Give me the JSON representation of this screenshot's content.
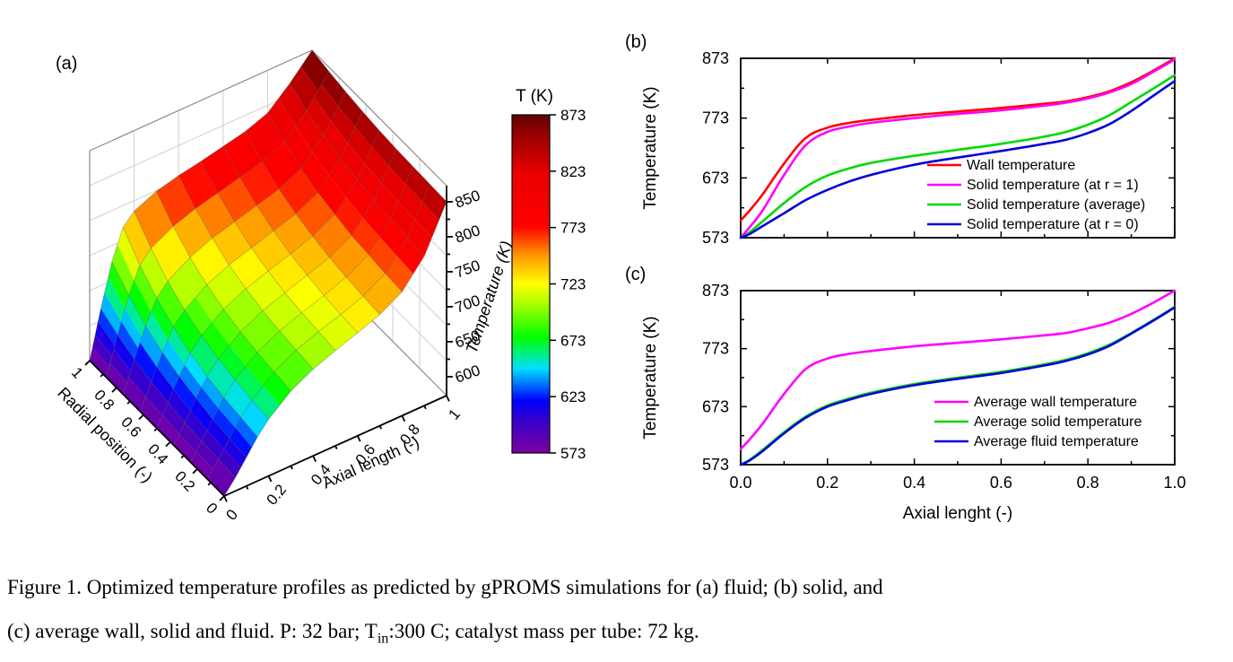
{
  "caption": {
    "line1": "Figure 1. Optimized temperature profiles as predicted by gPROMS simulations for (a) fluid; (b) solid, and",
    "line2_pre": "(c) average wall, solid and fluid. P: 32 bar; T",
    "line2_sub": "in",
    "line2_post": ":300 C; catalyst mass per tube: 72 kg."
  },
  "chart_data": [
    {
      "id": "a",
      "type": "surface",
      "panel_label": "(a)",
      "xlabel": "Axial length (-)",
      "ylabel": "Radial position (-)",
      "zlabel": "Temperature (K)",
      "x_ticks": [
        "0",
        "0.2",
        "0.4",
        "0.6",
        "0.8",
        "1"
      ],
      "y_ticks": [
        "0",
        "0.2",
        "0.4",
        "0.6",
        "0.8",
        "1"
      ],
      "z_ticks": [
        "600",
        "650",
        "700",
        "750",
        "800",
        "850"
      ],
      "zlim": [
        573,
        873
      ],
      "axial": [
        0,
        0.05,
        0.1,
        0.15,
        0.2,
        0.3,
        0.4,
        0.5,
        0.6,
        0.7,
        0.8,
        0.9,
        1.0
      ],
      "radial": [
        0,
        0.125,
        0.25,
        0.375,
        0.5,
        0.625,
        0.75,
        0.875,
        1
      ],
      "temperature_grid": [
        [
          573,
          592,
          614,
          636,
          654,
          680,
          697,
          709,
          720,
          732,
          750,
          787,
          850
        ],
        [
          573,
          594,
          617,
          640,
          657,
          683,
          700,
          712,
          722,
          734,
          752,
          789,
          851
        ],
        [
          573,
          596,
          620,
          644,
          662,
          687,
          703,
          715,
          725,
          737,
          755,
          791,
          852
        ],
        [
          573,
          598,
          626,
          650,
          668,
          692,
          708,
          719,
          730,
          741,
          758,
          794,
          853
        ],
        [
          573,
          603,
          633,
          659,
          677,
          700,
          715,
          726,
          736,
          747,
          764,
          799,
          855
        ],
        [
          573,
          608,
          643,
          672,
          689,
          711,
          725,
          735,
          745,
          755,
          771,
          805,
          858
        ],
        [
          573,
          616,
          657,
          689,
          706,
          726,
          739,
          748,
          757,
          766,
          781,
          814,
          862
        ],
        [
          573,
          627,
          676,
          712,
          729,
          746,
          757,
          765,
          773,
          781,
          795,
          825,
          867
        ],
        [
          573,
          640,
          700,
          742,
          758,
          772,
          780,
          786,
          793,
          800,
          812,
          840,
          873
        ]
      ]
    },
    {
      "id": "colorbar",
      "type": "colorbar",
      "title": "T (K)",
      "ticks": [
        "873",
        "823",
        "773",
        "723",
        "673",
        "623",
        "573"
      ],
      "tick_values": [
        873,
        823,
        773,
        723,
        673,
        623,
        573
      ],
      "range": [
        573,
        873
      ],
      "stops": [
        [
          0.0,
          "#7c00a0"
        ],
        [
          0.09,
          "#3c00c8"
        ],
        [
          0.155,
          "#0000ff"
        ],
        [
          0.25,
          "#00e0ff"
        ],
        [
          0.34,
          "#00ff00"
        ],
        [
          0.46,
          "#c8ff00"
        ],
        [
          0.5,
          "#ffff00"
        ],
        [
          0.585,
          "#ff9600"
        ],
        [
          0.67,
          "#ff0000"
        ],
        [
          0.83,
          "#e80000"
        ],
        [
          0.93,
          "#a00000"
        ],
        [
          1.0,
          "#600000"
        ]
      ]
    },
    {
      "id": "b",
      "type": "line",
      "panel_label": "(b)",
      "ylabel": "Temperature (K)",
      "ylim": [
        573,
        873
      ],
      "y_major_ticks": [
        573,
        673,
        773,
        873
      ],
      "y_minor_ticks": [
        623,
        723,
        823
      ],
      "xlim": [
        0,
        1
      ],
      "x_major_ticks": [
        0,
        0.2,
        0.4,
        0.6,
        0.8,
        1
      ],
      "x_minor_ticks": [
        0.1,
        0.3,
        0.5,
        0.7,
        0.9
      ],
      "x_tick_labels": [],
      "xlabel": "",
      "x": [
        0,
        0.02,
        0.05,
        0.1,
        0.15,
        0.2,
        0.25,
        0.3,
        0.4,
        0.5,
        0.6,
        0.7,
        0.75,
        0.8,
        0.85,
        0.9,
        0.95,
        1
      ],
      "series": [
        {
          "name": "Wall temperature",
          "color": "#ff0000",
          "values": [
            602,
            618,
            645,
            697,
            740,
            757,
            765,
            770,
            778,
            784,
            790,
            797,
            801,
            808,
            818,
            833,
            852,
            873
          ]
        },
        {
          "name": "Solid temperature (at r = 1)",
          "color": "#ff00ff",
          "values": [
            573,
            590,
            618,
            678,
            728,
            750,
            759,
            765,
            773,
            780,
            786,
            794,
            799,
            806,
            816,
            830,
            850,
            871
          ]
        },
        {
          "name": "Solid temperature (average)",
          "color": "#00d900",
          "values": [
            573,
            582,
            600,
            631,
            658,
            677,
            689,
            698,
            710,
            720,
            730,
            742,
            750,
            762,
            778,
            800,
            822,
            845
          ]
        },
        {
          "name": "Solid temperature (at r = 0)",
          "color": "#0000d9",
          "values": [
            573,
            579,
            592,
            614,
            636,
            653,
            667,
            678,
            695,
            707,
            718,
            730,
            737,
            748,
            763,
            785,
            810,
            835
          ]
        }
      ],
      "legend_position": "right-center"
    },
    {
      "id": "c",
      "type": "line",
      "panel_label": "(c)",
      "ylabel": "Temperature (K)",
      "ylim": [
        573,
        873
      ],
      "y_major_ticks": [
        573,
        673,
        773,
        873
      ],
      "y_minor_ticks": [
        623,
        723,
        823
      ],
      "xlim": [
        0,
        1
      ],
      "x_major_ticks": [
        0,
        0.2,
        0.4,
        0.6,
        0.8,
        1
      ],
      "x_minor_ticks": [
        0.1,
        0.3,
        0.5,
        0.7,
        0.9
      ],
      "x_tick_labels": [
        "0.0",
        "0.2",
        "0.4",
        "0.6",
        "0.8",
        "1.0"
      ],
      "xlabel": "Axial lenght (-)",
      "x": [
        0,
        0.02,
        0.05,
        0.1,
        0.15,
        0.2,
        0.25,
        0.3,
        0.4,
        0.5,
        0.6,
        0.7,
        0.75,
        0.8,
        0.85,
        0.9,
        0.95,
        1
      ],
      "series": [
        {
          "name": "Average wall temperature",
          "color": "#ff00ff",
          "values": [
            600,
            616,
            643,
            695,
            738,
            756,
            764,
            769,
            777,
            783,
            789,
            796,
            800,
            808,
            818,
            833,
            852,
            873
          ]
        },
        {
          "name": "Average solid temperature",
          "color": "#00d900",
          "values": [
            573,
            581,
            598,
            629,
            656,
            675,
            687,
            697,
            712,
            723,
            733,
            746,
            754,
            765,
            780,
            800,
            822,
            845
          ]
        },
        {
          "name": "Average fluid temperature",
          "color": "#0000d9",
          "values": [
            573,
            580,
            596,
            627,
            654,
            673,
            685,
            695,
            710,
            721,
            731,
            744,
            752,
            763,
            778,
            799,
            821,
            844
          ]
        }
      ],
      "legend_position": "right-center"
    }
  ]
}
